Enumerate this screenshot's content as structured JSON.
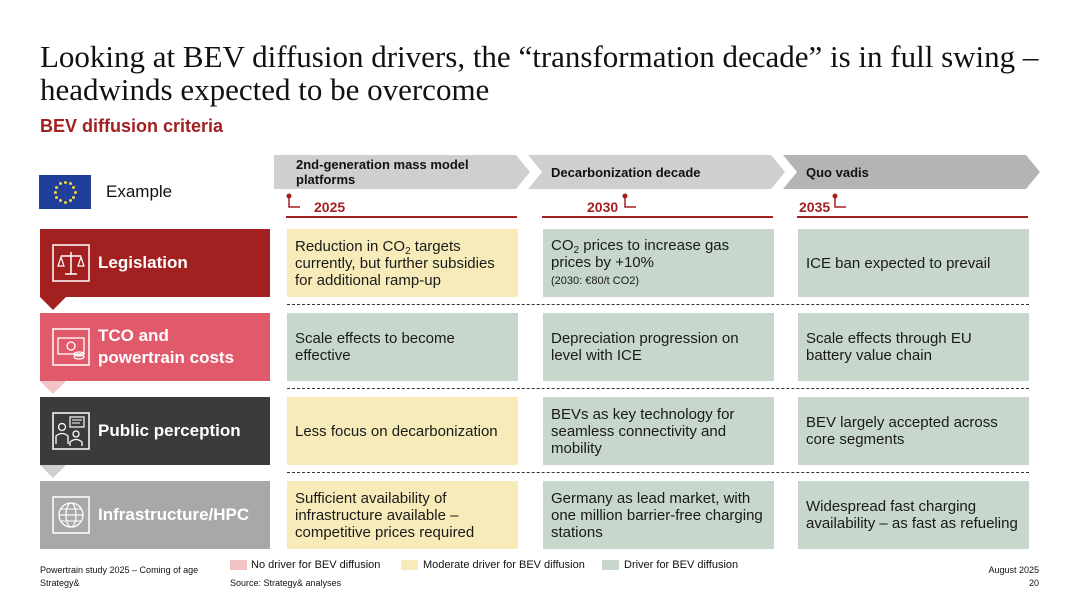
{
  "title": "Looking at BEV diffusion drivers, the “transformation decade” is in full swing –headwinds expected to be overcome",
  "subtitle": "BEV diffusion criteria",
  "example_label": "Example",
  "phases": [
    {
      "label": "2nd-generation mass model platforms",
      "year": "2025"
    },
    {
      "label": "Decarbonization decade",
      "year": "2030"
    },
    {
      "label": "Quo vadis",
      "year": "2035"
    }
  ],
  "rows": [
    {
      "label": "Legislation",
      "icon": "scales-icon",
      "color": "#a32020",
      "cells": [
        {
          "text": "Reduction in CO",
          "sub": "2",
          "text2": " targets currently, but further subsidies for additional ramp-up",
          "status": "moderate"
        },
        {
          "text": "CO",
          "sub": "2",
          "text2": " prices to increase gas prices by +10%",
          "note": "(2030: €80/t CO2)",
          "status": "driver"
        },
        {
          "text": "ICE ban expected to prevail",
          "status": "driver"
        }
      ]
    },
    {
      "label": "TCO and powertrain costs",
      "icon": "cost-icon",
      "color": "#e05a6c",
      "cells": [
        {
          "text": "Scale effects to become effective",
          "status": "driver"
        },
        {
          "text": "Depreciation progression on level with ICE",
          "status": "driver"
        },
        {
          "text": "Scale effects through EU battery value chain",
          "status": "driver"
        }
      ]
    },
    {
      "label": "Public perception",
      "icon": "people-icon",
      "color": "#3b3b3b",
      "cells": [
        {
          "text": "Less focus on decarbonization",
          "status": "moderate"
        },
        {
          "text": "BEVs as key technology for seamless connectivity and mobility",
          "status": "driver"
        },
        {
          "text": "BEV largely accepted across core segments",
          "status": "driver"
        }
      ]
    },
    {
      "label": "Infrastructure/HPC",
      "icon": "globe-icon",
      "color": "#a8a8a8",
      "cells": [
        {
          "text": "Sufficient availability of infrastructure available – competitive prices required",
          "status": "moderate"
        },
        {
          "text": "Germany as lead market, with one million barrier-free charging stations",
          "status": "driver"
        },
        {
          "text": "Widespread fast charging availability – as fast as refueling",
          "status": "driver"
        }
      ]
    }
  ],
  "legend": [
    {
      "label": "No driver for BEV diffusion",
      "color": "#f3c3c3"
    },
    {
      "label": "Moderate driver for BEV diffusion",
      "color": "#f7ecb9"
    },
    {
      "label": "Driver for BEV diffusion",
      "color": "#c7d7cc"
    }
  ],
  "footer": {
    "study": "Powertrain study 2025 – Coming of age",
    "brand": "Strategy&",
    "source": "Source: Strategy& analyses",
    "date": "August 2025",
    "page": "20"
  }
}
